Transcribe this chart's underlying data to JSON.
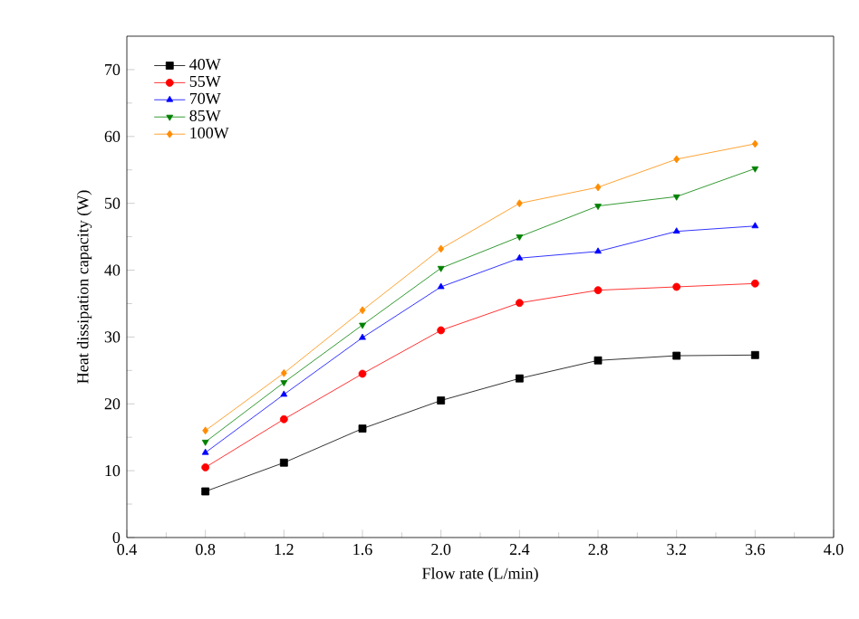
{
  "chart_data": {
    "type": "line",
    "xlabel": "Flow rate (L/min)",
    "ylabel": "Heat dissipation capacity (W)",
    "x": [
      0.8,
      1.2,
      1.6,
      2.0,
      2.4,
      2.8,
      3.2,
      3.6
    ],
    "xlim": [
      0.4,
      4.0
    ],
    "xticks": [
      {
        "value": 0.4,
        "label": "0.4"
      },
      {
        "value": 0.8,
        "label": "0.8"
      },
      {
        "value": 1.2,
        "label": "1.2"
      },
      {
        "value": 1.6,
        "label": "1.6"
      },
      {
        "value": 2.0,
        "label": "2.0"
      },
      {
        "value": 2.4,
        "label": "2.4"
      },
      {
        "value": 2.8,
        "label": "2.8"
      },
      {
        "value": 3.2,
        "label": "3.2"
      },
      {
        "value": 3.6,
        "label": "3.6"
      },
      {
        "value": 4.0,
        "label": "4.0"
      }
    ],
    "ylim": [
      0,
      75
    ],
    "yticks": [
      0,
      10,
      20,
      30,
      40,
      50,
      60,
      70
    ],
    "legend": "top left",
    "grid": false,
    "series": [
      {
        "name": "40W",
        "color": "#000000",
        "marker": "square",
        "values": [
          6.9,
          11.2,
          16.3,
          20.5,
          23.8,
          26.5,
          27.2,
          27.3
        ]
      },
      {
        "name": "55W",
        "color": "#ff0000",
        "marker": "circle",
        "values": [
          10.5,
          17.7,
          24.5,
          31.0,
          35.1,
          37.0,
          37.5,
          38.0
        ]
      },
      {
        "name": "70W",
        "color": "#0000ff",
        "marker": "triangle",
        "values": [
          12.7,
          21.4,
          29.9,
          37.5,
          41.8,
          42.8,
          45.8,
          46.6
        ]
      },
      {
        "name": "85W",
        "color": "#008000",
        "marker": "triangle-down",
        "values": [
          14.3,
          23.2,
          31.8,
          40.3,
          45.0,
          49.6,
          51.0,
          55.2
        ]
      },
      {
        "name": "100W",
        "color": "#ff8c00",
        "marker": "diamond",
        "values": [
          16.0,
          24.6,
          34.0,
          43.2,
          50.0,
          52.4,
          56.6,
          58.9
        ]
      }
    ]
  }
}
